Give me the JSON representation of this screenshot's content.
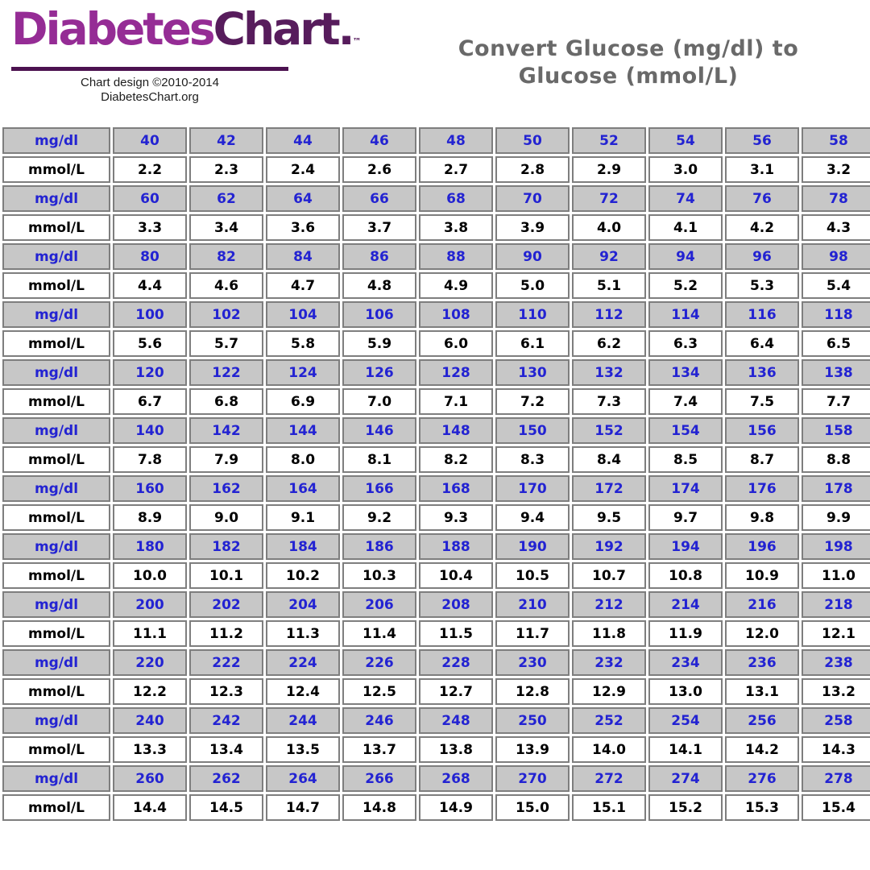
{
  "logo": {
    "name_part1": "Diabetes",
    "name_part2": "Chart.",
    "trademark": "™",
    "copyright_line1": "Chart design ©2010-2014",
    "copyright_line2": "DiabetesChart.org"
  },
  "header": {
    "title_line1": "Convert Glucose (mg/dl) to",
    "title_line2": "Glucose (mmol/L)"
  },
  "colors": {
    "blue_text": "#2323d2",
    "gray_row_bg": "#c7c7c7",
    "cell_border": "#7e7e7e",
    "logo_purple": "#952c95",
    "logo_dark_purple": "#571c5c",
    "title_gray": "#696969"
  },
  "chart_data": {
    "type": "table",
    "title": "Convert Glucose (mg/dl) to Glucose (mmol/L)",
    "row_labels": {
      "mgdl": "mg/dl",
      "mmol": "mmol/L"
    },
    "columns_per_row": 10,
    "groups": [
      {
        "mgdl": [
          "40",
          "42",
          "44",
          "46",
          "48",
          "50",
          "52",
          "54",
          "56",
          "58"
        ],
        "mmol": [
          "2.2",
          "2.3",
          "2.4",
          "2.6",
          "2.7",
          "2.8",
          "2.9",
          "3.0",
          "3.1",
          "3.2"
        ]
      },
      {
        "mgdl": [
          "60",
          "62",
          "64",
          "66",
          "68",
          "70",
          "72",
          "74",
          "76",
          "78"
        ],
        "mmol": [
          "3.3",
          "3.4",
          "3.6",
          "3.7",
          "3.8",
          "3.9",
          "4.0",
          "4.1",
          "4.2",
          "4.3"
        ]
      },
      {
        "mgdl": [
          "80",
          "82",
          "84",
          "86",
          "88",
          "90",
          "92",
          "94",
          "96",
          "98"
        ],
        "mmol": [
          "4.4",
          "4.6",
          "4.7",
          "4.8",
          "4.9",
          "5.0",
          "5.1",
          "5.2",
          "5.3",
          "5.4"
        ]
      },
      {
        "mgdl": [
          "100",
          "102",
          "104",
          "106",
          "108",
          "110",
          "112",
          "114",
          "116",
          "118"
        ],
        "mmol": [
          "5.6",
          "5.7",
          "5.8",
          "5.9",
          "6.0",
          "6.1",
          "6.2",
          "6.3",
          "6.4",
          "6.5"
        ]
      },
      {
        "mgdl": [
          "120",
          "122",
          "124",
          "126",
          "128",
          "130",
          "132",
          "134",
          "136",
          "138"
        ],
        "mmol": [
          "6.7",
          "6.8",
          "6.9",
          "7.0",
          "7.1",
          "7.2",
          "7.3",
          "7.4",
          "7.5",
          "7.7"
        ]
      },
      {
        "mgdl": [
          "140",
          "142",
          "144",
          "146",
          "148",
          "150",
          "152",
          "154",
          "156",
          "158"
        ],
        "mmol": [
          "7.8",
          "7.9",
          "8.0",
          "8.1",
          "8.2",
          "8.3",
          "8.4",
          "8.5",
          "8.7",
          "8.8"
        ]
      },
      {
        "mgdl": [
          "160",
          "162",
          "164",
          "166",
          "168",
          "170",
          "172",
          "174",
          "176",
          "178"
        ],
        "mmol": [
          "8.9",
          "9.0",
          "9.1",
          "9.2",
          "9.3",
          "9.4",
          "9.5",
          "9.7",
          "9.8",
          "9.9"
        ]
      },
      {
        "mgdl": [
          "180",
          "182",
          "184",
          "186",
          "188",
          "190",
          "192",
          "194",
          "196",
          "198"
        ],
        "mmol": [
          "10.0",
          "10.1",
          "10.2",
          "10.3",
          "10.4",
          "10.5",
          "10.7",
          "10.8",
          "10.9",
          "11.0"
        ]
      },
      {
        "mgdl": [
          "200",
          "202",
          "204",
          "206",
          "208",
          "210",
          "212",
          "214",
          "216",
          "218"
        ],
        "mmol": [
          "11.1",
          "11.2",
          "11.3",
          "11.4",
          "11.5",
          "11.7",
          "11.8",
          "11.9",
          "12.0",
          "12.1"
        ]
      },
      {
        "mgdl": [
          "220",
          "222",
          "224",
          "226",
          "228",
          "230",
          "232",
          "234",
          "236",
          "238"
        ],
        "mmol": [
          "12.2",
          "12.3",
          "12.4",
          "12.5",
          "12.7",
          "12.8",
          "12.9",
          "13.0",
          "13.1",
          "13.2"
        ]
      },
      {
        "mgdl": [
          "240",
          "242",
          "244",
          "246",
          "248",
          "250",
          "252",
          "254",
          "256",
          "258"
        ],
        "mmol": [
          "13.3",
          "13.4",
          "13.5",
          "13.7",
          "13.8",
          "13.9",
          "14.0",
          "14.1",
          "14.2",
          "14.3"
        ]
      },
      {
        "mgdl": [
          "260",
          "262",
          "264",
          "266",
          "268",
          "270",
          "272",
          "274",
          "276",
          "278"
        ],
        "mmol": [
          "14.4",
          "14.5",
          "14.7",
          "14.8",
          "14.9",
          "15.0",
          "15.1",
          "15.2",
          "15.3",
          "15.4"
        ]
      }
    ]
  }
}
